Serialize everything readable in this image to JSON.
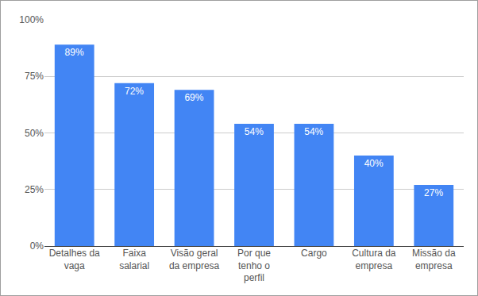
{
  "chart_data": {
    "type": "bar",
    "categories": [
      "Detalhes da vaga",
      "Faixa salarial",
      "Visão geral da empresa",
      "Por que tenho o perfil",
      "Cargo",
      "Cultura da empresa",
      "Missão da empresa"
    ],
    "values": [
      89,
      72,
      69,
      54,
      54,
      40,
      27
    ],
    "value_labels": [
      "89%",
      "72%",
      "69%",
      "54%",
      "54%",
      "40%",
      "27%"
    ],
    "data_labels": true,
    "color": "#4285f4",
    "ylim": [
      0,
      100
    ],
    "yticks": [
      {
        "value": 0,
        "label": "0%"
      },
      {
        "value": 25,
        "label": "25%"
      },
      {
        "value": 50,
        "label": "50%"
      },
      {
        "value": 75,
        "label": "75%"
      },
      {
        "value": 100,
        "label": "100%"
      }
    ],
    "grid": true
  }
}
